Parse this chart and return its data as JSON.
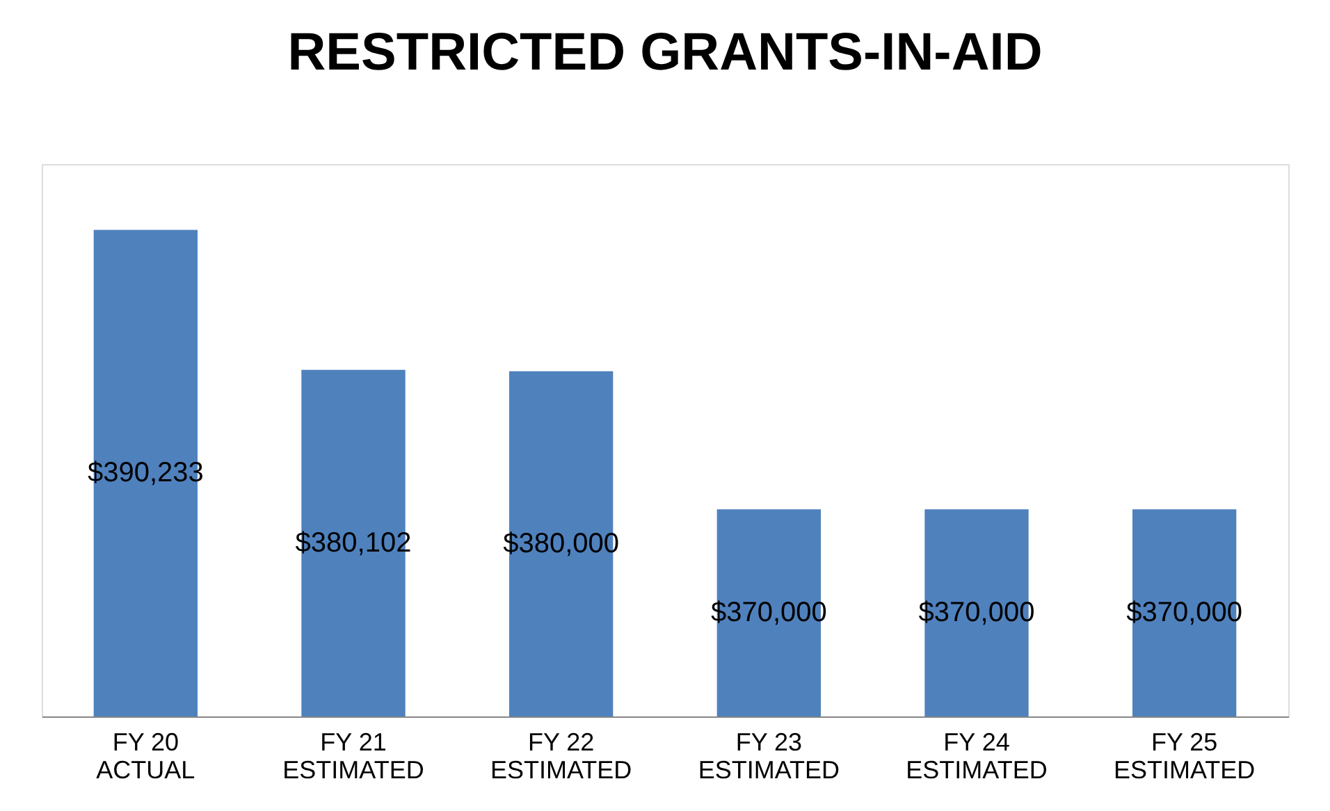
{
  "chart_data": {
    "type": "bar",
    "title": "RESTRICTED GRANTS-IN-AID",
    "categories": [
      "FY 20\nACTUAL",
      "FY 21\nESTIMATED",
      "FY 22\nESTIMATED",
      "FY 23\nESTIMATED",
      "FY 24\nESTIMATED",
      "FY 25\nESTIMATED"
    ],
    "values": [
      390233,
      380102,
      380000,
      370000,
      370000,
      370000
    ],
    "value_labels": [
      "$390,233",
      "$380,102",
      "$380,000",
      "$370,000",
      "$370,000",
      "$370,000"
    ],
    "color": "#4f81bd",
    "ylim": [
      355000,
      395000
    ],
    "tick_labels": "x",
    "grid": false
  }
}
